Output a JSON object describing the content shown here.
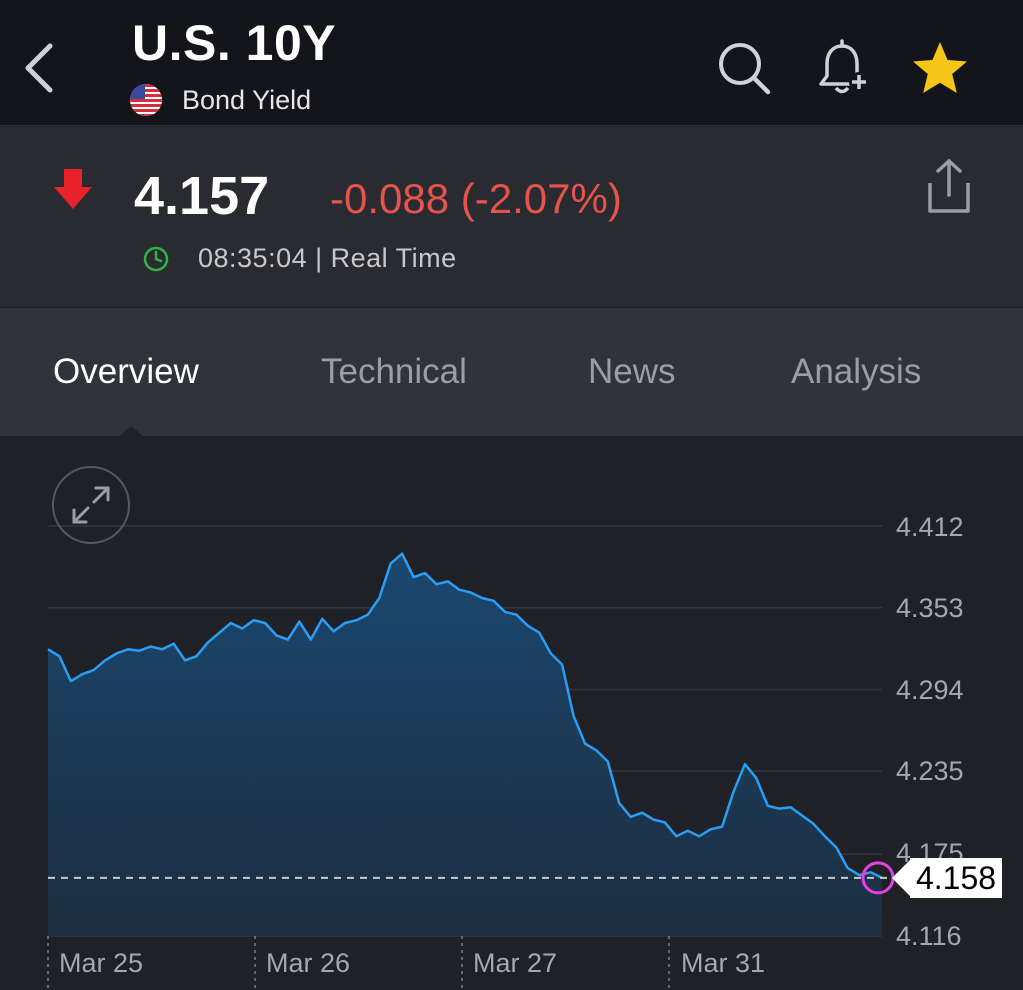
{
  "header": {
    "title": "U.S. 10Y",
    "subtitle": "Bond Yield",
    "icons": [
      "back-chevron-icon",
      "search-icon",
      "bell-plus-icon",
      "star-icon"
    ],
    "star_color": "#f5c518"
  },
  "quote": {
    "price": "4.157",
    "change": "-0.088 (-2.07%)",
    "time": "08:35:04 | Real Time",
    "down_color": "#e5534b",
    "clock_color": "#2fb344"
  },
  "tabs": [
    {
      "label": "Overview",
      "active": true
    },
    {
      "label": "Technical",
      "active": false
    },
    {
      "label": "News",
      "active": false
    },
    {
      "label": "Analysis",
      "active": false
    }
  ],
  "chart_data": {
    "type": "area",
    "y_ticks": [
      "4.412",
      "4.353",
      "4.294",
      "4.235",
      "4.175",
      "4.116"
    ],
    "ylim": [
      4.116,
      4.412
    ],
    "x_ticks": [
      "Mar 25",
      "Mar 26",
      "Mar 27",
      "Mar 31"
    ],
    "last_value": "4.158",
    "line_color": "#2a9df4",
    "series": [
      {
        "values": [
          4.323,
          4.318,
          4.3,
          4.305,
          4.308,
          4.315,
          4.32,
          4.323,
          4.322,
          4.325,
          4.323,
          4.327,
          4.315,
          4.318,
          4.328,
          4.335,
          4.342,
          4.338,
          4.344,
          4.342,
          4.333,
          4.33,
          4.343,
          4.33,
          4.345,
          4.336,
          4.342,
          4.344,
          4.348,
          4.36,
          4.385,
          4.392,
          4.375,
          4.378,
          4.37,
          4.372,
          4.366,
          4.364,
          4.36,
          4.358,
          4.35,
          4.348,
          4.34,
          4.335,
          4.32,
          4.312,
          4.275,
          4.255,
          4.25,
          4.242,
          4.212,
          4.202,
          4.205,
          4.2,
          4.198,
          4.188,
          4.192,
          4.188,
          4.193,
          4.195,
          4.22,
          4.24,
          4.23,
          4.21,
          4.208,
          4.209,
          4.203,
          4.197,
          4.188,
          4.18,
          4.165,
          4.16,
          4.162,
          4.158
        ]
      }
    ]
  }
}
